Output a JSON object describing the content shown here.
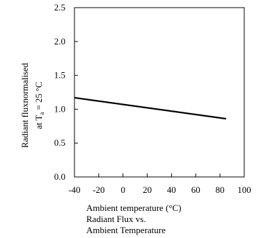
{
  "chart_data": {
    "type": "line",
    "ylabel_line1": "Radiant fluxnormalised",
    "ylabel_line2_prefix": "at T",
    "ylabel_line2_sub": "a",
    "ylabel_line2_suffix": " = 25 °C",
    "xlabel": "Ambient temperature (°C)",
    "caption_line1": "Radiant Flux vs.",
    "caption_line2": "Ambient Temperature",
    "xlim": [
      -40,
      100
    ],
    "ylim": [
      0.0,
      2.5
    ],
    "x_ticks": [
      -40,
      -20,
      0,
      20,
      40,
      60,
      80,
      100
    ],
    "x_tick_labels": [
      "-40",
      "-20",
      "0",
      "20",
      "40",
      "60",
      "80",
      "100"
    ],
    "y_ticks": [
      0.0,
      0.5,
      1.0,
      1.5,
      2.0,
      2.5
    ],
    "y_tick_labels": [
      "0.0",
      "0.5",
      "1.0",
      "1.5",
      "2.0",
      "2.5"
    ],
    "grid": false,
    "series": [
      {
        "x": [
          -40,
          85
        ],
        "y": [
          1.17,
          0.86
        ],
        "color": "#000000"
      }
    ]
  }
}
